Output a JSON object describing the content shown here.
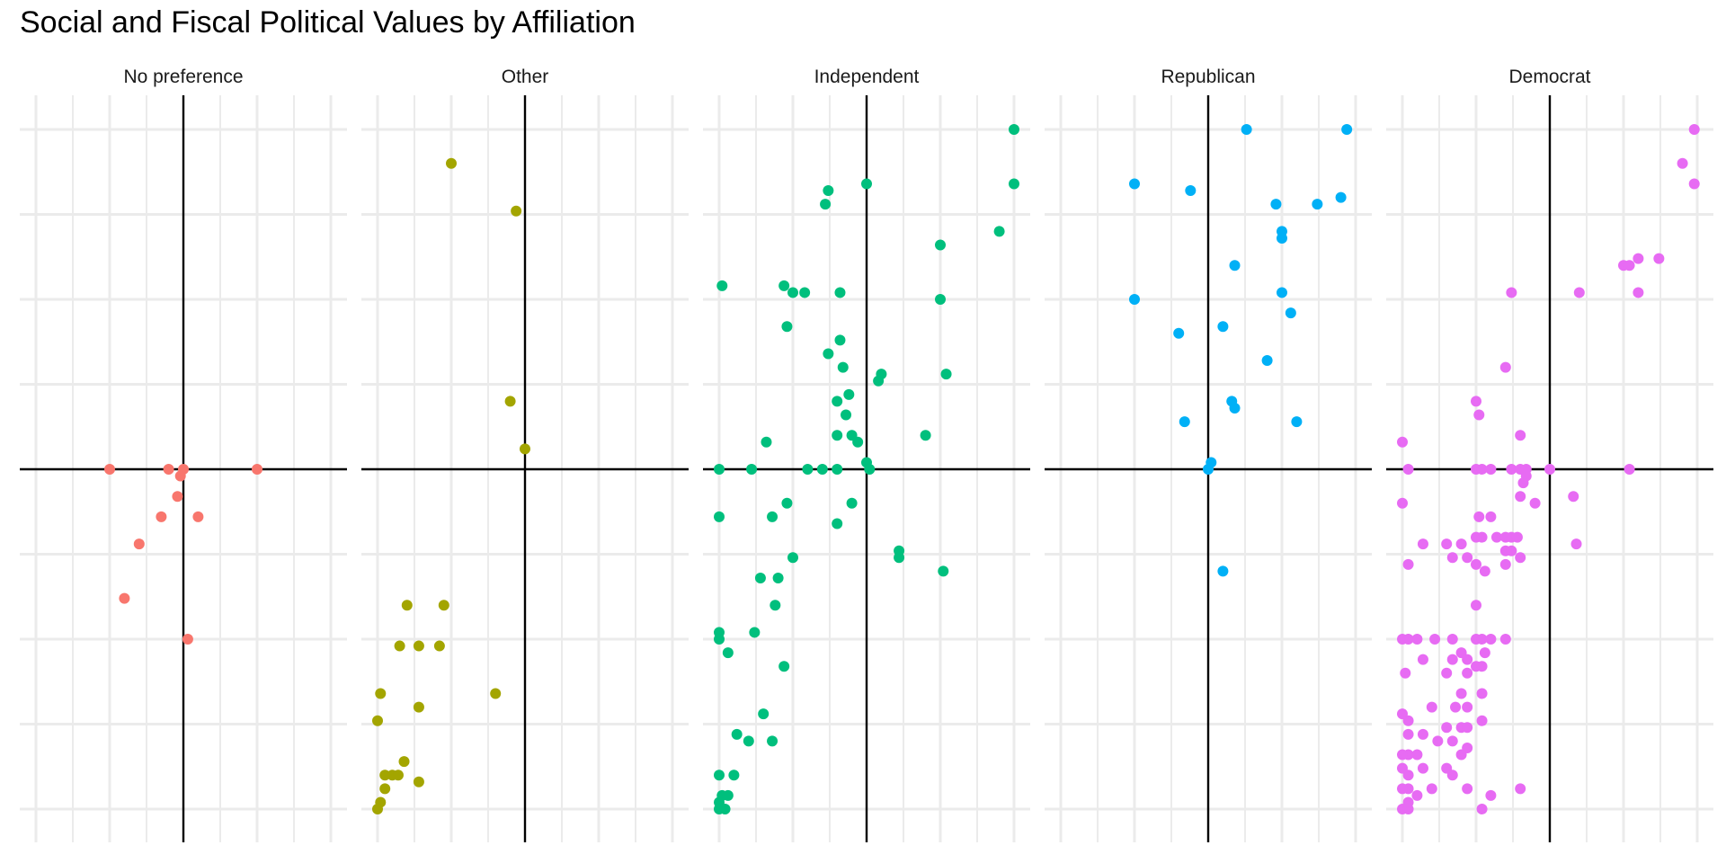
{
  "title": "Social and Fiscal Political Values by Affiliation",
  "chart_data": {
    "type": "scatter",
    "title": "Social and Fiscal Political Values by Affiliation",
    "xlabel": "",
    "ylabel": "",
    "xlim": [
      -1.1,
      1.1
    ],
    "ylim": [
      -1.05,
      1.05
    ],
    "grid": true,
    "axis_ticks_shown": false,
    "reference_lines": {
      "x": 0,
      "y": 0
    },
    "panels": [
      {
        "name": "No preference",
        "color": "#F8766D",
        "points": [
          [
            -0.5,
            0
          ],
          [
            -0.1,
            0
          ],
          [
            0,
            0
          ],
          [
            -0.02,
            -0.02
          ],
          [
            0.5,
            0
          ],
          [
            -0.04,
            -0.08
          ],
          [
            -0.15,
            -0.14
          ],
          [
            0.1,
            -0.14
          ],
          [
            -0.3,
            -0.22
          ],
          [
            -0.4,
            -0.38
          ],
          [
            0.03,
            -0.5
          ]
        ]
      },
      {
        "name": "Other",
        "color": "#A3A500",
        "points": [
          [
            -0.5,
            0.9
          ],
          [
            -0.06,
            0.76
          ],
          [
            -0.1,
            0.2
          ],
          [
            0,
            0.06
          ],
          [
            -0.55,
            -0.4
          ],
          [
            -0.8,
            -0.4
          ],
          [
            -0.85,
            -0.52
          ],
          [
            -0.72,
            -0.52
          ],
          [
            -0.58,
            -0.52
          ],
          [
            -0.2,
            -0.66
          ],
          [
            -0.98,
            -0.66
          ],
          [
            -0.72,
            -0.7
          ],
          [
            -1,
            -0.74
          ],
          [
            -0.82,
            -0.86
          ],
          [
            -0.9,
            -0.9
          ],
          [
            -0.86,
            -0.9
          ],
          [
            -0.95,
            -0.9
          ],
          [
            -0.72,
            -0.92
          ],
          [
            -0.95,
            -0.94
          ],
          [
            -0.98,
            -0.98
          ],
          [
            -1,
            -1
          ]
        ]
      },
      {
        "name": "Independent",
        "color": "#00BF7D",
        "points": [
          [
            1,
            1
          ],
          [
            1,
            0.84
          ],
          [
            0,
            0.84
          ],
          [
            -0.26,
            0.82
          ],
          [
            -0.28,
            0.78
          ],
          [
            0.9,
            0.7
          ],
          [
            0.5,
            0.66
          ],
          [
            -0.98,
            0.54
          ],
          [
            -0.56,
            0.54
          ],
          [
            -0.5,
            0.52
          ],
          [
            -0.42,
            0.52
          ],
          [
            -0.18,
            0.52
          ],
          [
            0.5,
            0.5
          ],
          [
            -0.54,
            0.42
          ],
          [
            -0.18,
            0.38
          ],
          [
            -0.26,
            0.34
          ],
          [
            -0.16,
            0.3
          ],
          [
            0.1,
            0.28
          ],
          [
            0.08,
            0.26
          ],
          [
            0.54,
            0.28
          ],
          [
            -0.12,
            0.22
          ],
          [
            -0.2,
            0.2
          ],
          [
            -0.14,
            0.16
          ],
          [
            -0.68,
            0.08
          ],
          [
            -0.2,
            0.1
          ],
          [
            -0.1,
            0.1
          ],
          [
            -0.06,
            0.08
          ],
          [
            0.4,
            0.1
          ],
          [
            -1,
            0
          ],
          [
            -0.78,
            0
          ],
          [
            -0.4,
            0
          ],
          [
            -0.3,
            0
          ],
          [
            -0.2,
            0
          ],
          [
            0,
            0.02
          ],
          [
            0.02,
            0
          ],
          [
            -0.54,
            -0.1
          ],
          [
            -0.1,
            -0.1
          ],
          [
            -1,
            -0.14
          ],
          [
            -0.64,
            -0.14
          ],
          [
            -0.2,
            -0.16
          ],
          [
            -0.5,
            -0.26
          ],
          [
            0.22,
            -0.24
          ],
          [
            0.22,
            -0.26
          ],
          [
            0.52,
            -0.3
          ],
          [
            -0.72,
            -0.32
          ],
          [
            -0.6,
            -0.32
          ],
          [
            -0.62,
            -0.4
          ],
          [
            -1,
            -0.48
          ],
          [
            -0.76,
            -0.48
          ],
          [
            -1,
            -0.5
          ],
          [
            -0.94,
            -0.54
          ],
          [
            -0.56,
            -0.58
          ],
          [
            -0.7,
            -0.72
          ],
          [
            -0.88,
            -0.78
          ],
          [
            -0.8,
            -0.8
          ],
          [
            -0.64,
            -0.8
          ],
          [
            -1,
            -0.9
          ],
          [
            -0.9,
            -0.9
          ],
          [
            -0.98,
            -0.96
          ],
          [
            -0.94,
            -0.96
          ],
          [
            -1,
            -0.98
          ],
          [
            -1,
            -1
          ],
          [
            -0.96,
            -1
          ]
        ]
      },
      {
        "name": "Republican",
        "color": "#00B0F6",
        "points": [
          [
            0.26,
            1
          ],
          [
            0.94,
            1
          ],
          [
            -0.5,
            0.84
          ],
          [
            -0.12,
            0.82
          ],
          [
            0.9,
            0.8
          ],
          [
            0.46,
            0.78
          ],
          [
            0.74,
            0.78
          ],
          [
            0.5,
            0.7
          ],
          [
            0.5,
            0.68
          ],
          [
            0.18,
            0.6
          ],
          [
            -0.5,
            0.5
          ],
          [
            0.5,
            0.52
          ],
          [
            0.56,
            0.46
          ],
          [
            -0.2,
            0.4
          ],
          [
            0.1,
            0.42
          ],
          [
            0.4,
            0.32
          ],
          [
            0.16,
            0.2
          ],
          [
            0.18,
            0.18
          ],
          [
            -0.16,
            0.14
          ],
          [
            0.6,
            0.14
          ],
          [
            0,
            0
          ],
          [
            0.02,
            0.02
          ],
          [
            0.1,
            -0.3
          ]
        ]
      },
      {
        "name": "Democrat",
        "color": "#E76BF3",
        "points": [
          [
            0.98,
            1
          ],
          [
            0.9,
            0.9
          ],
          [
            0.98,
            0.84
          ],
          [
            0.6,
            0.62
          ],
          [
            0.74,
            0.62
          ],
          [
            0.5,
            0.6
          ],
          [
            0.54,
            0.6
          ],
          [
            -0.26,
            0.52
          ],
          [
            0.2,
            0.52
          ],
          [
            0.6,
            0.52
          ],
          [
            -0.3,
            0.3
          ],
          [
            -0.5,
            0.2
          ],
          [
            -0.48,
            0.16
          ],
          [
            -0.2,
            0.1
          ],
          [
            -1,
            0.08
          ],
          [
            -0.96,
            0
          ],
          [
            -0.5,
            0
          ],
          [
            -0.46,
            0
          ],
          [
            -0.4,
            0
          ],
          [
            -0.26,
            0
          ],
          [
            -0.2,
            0
          ],
          [
            -0.16,
            0
          ],
          [
            0,
            0
          ],
          [
            0.54,
            0
          ],
          [
            -0.16,
            -0.02
          ],
          [
            -0.18,
            -0.04
          ],
          [
            -0.2,
            -0.08
          ],
          [
            -0.1,
            -0.1
          ],
          [
            -1,
            -0.1
          ],
          [
            -0.48,
            -0.14
          ],
          [
            0.16,
            -0.08
          ],
          [
            -0.4,
            -0.14
          ],
          [
            0.18,
            -0.22
          ],
          [
            -0.86,
            -0.22
          ],
          [
            -0.7,
            -0.22
          ],
          [
            -0.6,
            -0.22
          ],
          [
            -0.5,
            -0.2
          ],
          [
            -0.46,
            -0.2
          ],
          [
            -0.36,
            -0.2
          ],
          [
            -0.3,
            -0.2
          ],
          [
            -0.26,
            -0.2
          ],
          [
            -0.22,
            -0.2
          ],
          [
            -0.66,
            -0.26
          ],
          [
            -0.56,
            -0.26
          ],
          [
            -0.3,
            -0.24
          ],
          [
            -0.26,
            -0.24
          ],
          [
            -0.2,
            -0.26
          ],
          [
            -0.96,
            -0.28
          ],
          [
            -0.5,
            -0.28
          ],
          [
            -0.44,
            -0.3
          ],
          [
            -0.3,
            -0.28
          ],
          [
            -0.5,
            -0.4
          ],
          [
            -1,
            -0.5
          ],
          [
            -0.96,
            -0.5
          ],
          [
            -0.9,
            -0.5
          ],
          [
            -0.78,
            -0.5
          ],
          [
            -0.66,
            -0.5
          ],
          [
            -0.5,
            -0.5
          ],
          [
            -0.46,
            -0.5
          ],
          [
            -0.4,
            -0.5
          ],
          [
            -0.3,
            -0.5
          ],
          [
            -0.6,
            -0.54
          ],
          [
            -0.44,
            -0.54
          ],
          [
            -0.86,
            -0.56
          ],
          [
            -0.66,
            -0.56
          ],
          [
            -0.56,
            -0.56
          ],
          [
            -0.5,
            -0.58
          ],
          [
            -0.46,
            -0.58
          ],
          [
            -0.98,
            -0.6
          ],
          [
            -0.7,
            -0.6
          ],
          [
            -0.56,
            -0.6
          ],
          [
            -0.6,
            -0.66
          ],
          [
            -0.46,
            -0.66
          ],
          [
            -0.8,
            -0.7
          ],
          [
            -0.64,
            -0.7
          ],
          [
            -0.56,
            -0.7
          ],
          [
            -1,
            -0.72
          ],
          [
            -0.96,
            -0.74
          ],
          [
            -0.7,
            -0.76
          ],
          [
            -0.6,
            -0.76
          ],
          [
            -0.56,
            -0.76
          ],
          [
            -0.46,
            -0.74
          ],
          [
            -0.96,
            -0.78
          ],
          [
            -0.86,
            -0.78
          ],
          [
            -0.76,
            -0.8
          ],
          [
            -0.66,
            -0.8
          ],
          [
            -0.56,
            -0.82
          ],
          [
            -0.6,
            -0.84
          ],
          [
            -0.96,
            -0.84
          ],
          [
            -0.9,
            -0.84
          ],
          [
            -1,
            -0.84
          ],
          [
            -0.86,
            -0.88
          ],
          [
            -0.7,
            -0.88
          ],
          [
            -1,
            -0.88
          ],
          [
            -0.96,
            -0.9
          ],
          [
            -0.66,
            -0.9
          ],
          [
            -0.96,
            -0.94
          ],
          [
            -0.8,
            -0.94
          ],
          [
            -1,
            -0.94
          ],
          [
            -0.2,
            -0.94
          ],
          [
            -0.4,
            -0.96
          ],
          [
            -0.56,
            -0.94
          ],
          [
            -0.9,
            -0.96
          ],
          [
            -0.96,
            -0.98
          ],
          [
            -1,
            -1
          ],
          [
            -0.96,
            -1
          ],
          [
            -0.46,
            -1
          ]
        ]
      }
    ]
  }
}
